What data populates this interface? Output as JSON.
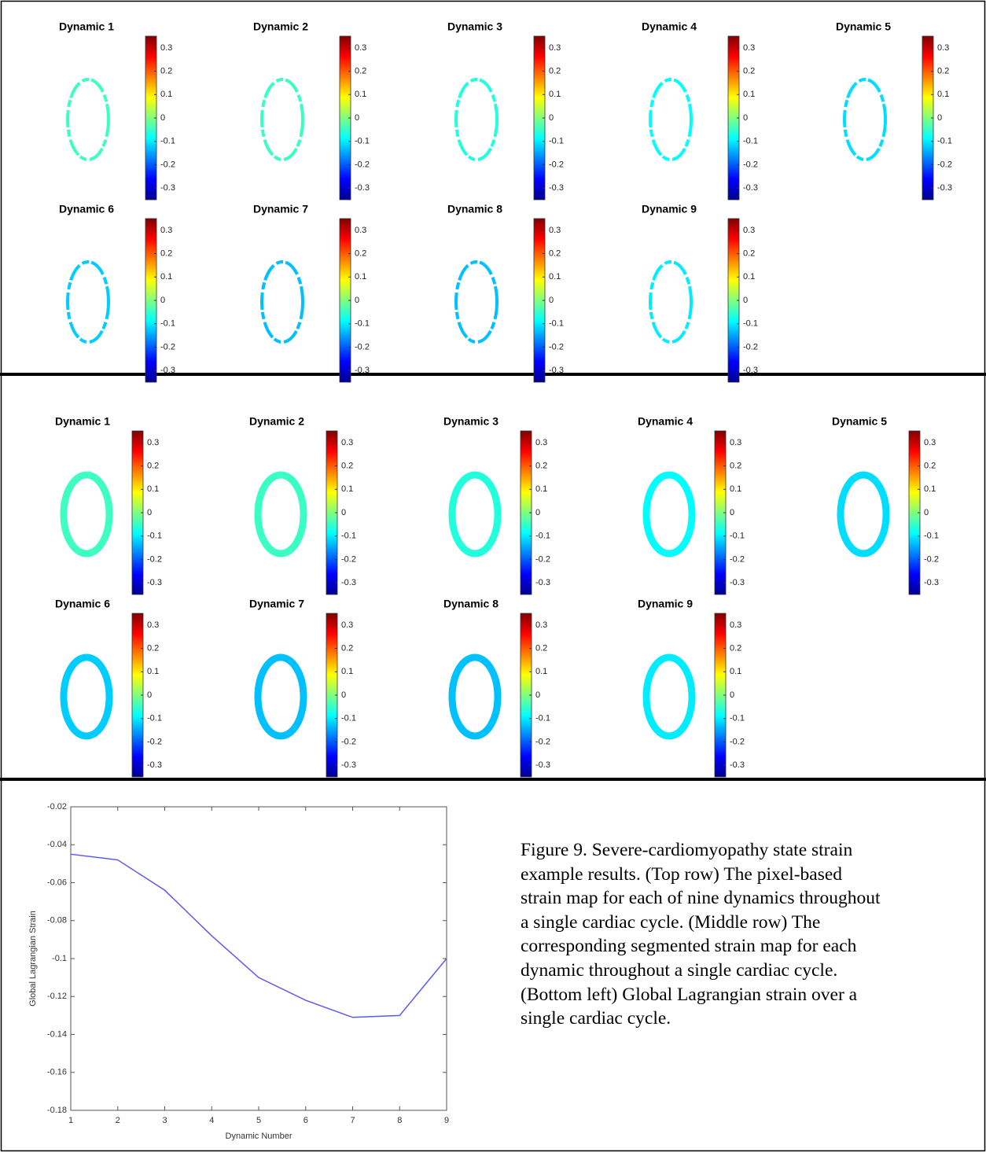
{
  "sections": [
    {
      "panels": [
        {
          "title": "Dynamic 1",
          "strain": -0.045
        },
        {
          "title": "Dynamic 2",
          "strain": -0.048
        },
        {
          "title": "Dynamic 3",
          "strain": -0.064
        },
        {
          "title": "Dynamic 4",
          "strain": -0.088
        },
        {
          "title": "Dynamic 5",
          "strain": -0.11
        },
        {
          "title": "Dynamic 6",
          "strain": -0.122
        },
        {
          "title": "Dynamic 7",
          "strain": -0.131
        },
        {
          "title": "Dynamic 8",
          "strain": -0.13
        },
        {
          "title": "Dynamic 9",
          "strain": -0.1
        }
      ]
    },
    {
      "panels": [
        {
          "title": "Dynamic 1",
          "strain": -0.045
        },
        {
          "title": "Dynamic 2",
          "strain": -0.048
        },
        {
          "title": "Dynamic 3",
          "strain": -0.064
        },
        {
          "title": "Dynamic 4",
          "strain": -0.088
        },
        {
          "title": "Dynamic 5",
          "strain": -0.11
        },
        {
          "title": "Dynamic 6",
          "strain": -0.122
        },
        {
          "title": "Dynamic 7",
          "strain": -0.131
        },
        {
          "title": "Dynamic 8",
          "strain": -0.13
        },
        {
          "title": "Dynamic 9",
          "strain": -0.1
        }
      ]
    }
  ],
  "colorbar": {
    "lim": [
      -0.35,
      0.35
    ],
    "ticks": [
      0.3,
      0.2,
      0.1,
      0,
      -0.1,
      -0.2,
      -0.3
    ]
  },
  "chart_data": {
    "type": "line",
    "x": [
      1,
      2,
      3,
      4,
      5,
      6,
      7,
      8,
      9
    ],
    "values": [
      -0.045,
      -0.048,
      -0.064,
      -0.088,
      -0.11,
      -0.122,
      -0.131,
      -0.13,
      -0.1
    ],
    "color": "#5a5af2",
    "xlim": [
      1,
      9
    ],
    "xticks": [
      1,
      2,
      3,
      4,
      5,
      6,
      7,
      8,
      9
    ],
    "ylim": [
      -0.18,
      -0.02
    ],
    "yticks": [
      -0.02,
      -0.04,
      -0.06,
      -0.08,
      -0.1,
      -0.12,
      -0.14,
      -0.16,
      -0.18
    ],
    "xlabel": "Dynamic Number",
    "ylabel": "Global Lagrangian Strain"
  },
  "caption": "Figure 9. Severe-cardiomyopathy state strain example results. (Top row) The pixel-based strain map for each of nine dynamics throughout a single cardiac cycle. (Middle row) The corresponding segmented strain map for each dynamic throughout a single cardiac cycle. (Bottom left) Global Lagrangian strain over a single cardiac cycle."
}
